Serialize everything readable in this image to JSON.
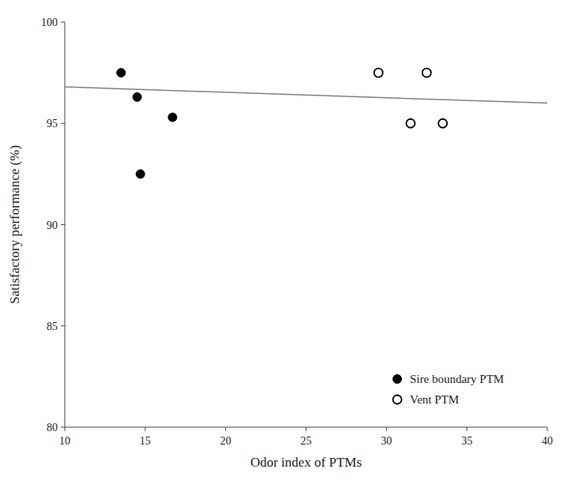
{
  "chart_data": {
    "type": "scatter",
    "xlabel": "Odor index of PTMs",
    "ylabel": "Satisfactory performance (%)",
    "xlim": [
      10,
      40
    ],
    "ylim": [
      80,
      100
    ],
    "xticks": [
      10,
      15,
      20,
      25,
      30,
      35,
      40
    ],
    "yticks": [
      80,
      85,
      90,
      95,
      100
    ],
    "grid": false,
    "legend": "lower right",
    "series": [
      {
        "name": "Sire boundary PTM",
        "type": "scatter",
        "color": "#000000",
        "marker": "circle",
        "x": [
          13.5,
          14.5,
          14.7,
          16.7
        ],
        "values": [
          97.5,
          96.3,
          92.5,
          95.3
        ]
      },
      {
        "name": "Vent PTM",
        "type": "scatter",
        "color": "#000000",
        "marker": "open-circle",
        "x": [
          29.5,
          31.5,
          32.5,
          33.5
        ],
        "values": [
          97.5,
          95.0,
          97.5,
          95.0
        ]
      },
      {
        "type": "line",
        "color": "#808080",
        "line_style": "solid",
        "x": [
          10,
          40
        ],
        "values": [
          96.8,
          96.0
        ]
      }
    ]
  }
}
